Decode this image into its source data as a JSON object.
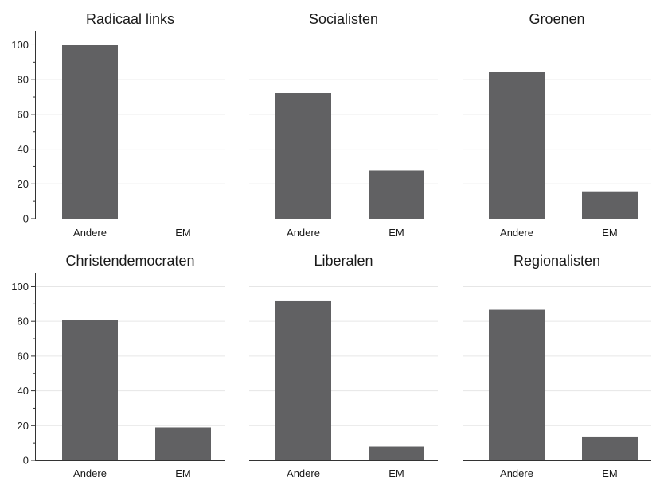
{
  "chart_data": [
    {
      "type": "bar",
      "title": "Radicaal links",
      "categories": [
        "Andere",
        "EM"
      ],
      "values": [
        100,
        0
      ],
      "ylim": [
        0,
        108
      ],
      "yticks": [
        0,
        20,
        40,
        60,
        80,
        100
      ],
      "grid": true
    },
    {
      "type": "bar",
      "title": "Socialisten",
      "categories": [
        "Andere",
        "EM"
      ],
      "values": [
        72.3,
        27.7
      ],
      "ylim": [
        0,
        108
      ],
      "yticks": [
        0,
        20,
        40,
        60,
        80,
        100
      ],
      "grid": true
    },
    {
      "type": "bar",
      "title": "Groenen",
      "categories": [
        "Andere",
        "EM"
      ],
      "values": [
        84.3,
        15.7
      ],
      "ylim": [
        0,
        108
      ],
      "yticks": [
        0,
        20,
        40,
        60,
        80,
        100
      ],
      "grid": true
    },
    {
      "type": "bar",
      "title": "Christendemocraten",
      "categories": [
        "Andere",
        "EM"
      ],
      "values": [
        81,
        19
      ],
      "ylim": [
        0,
        108
      ],
      "yticks": [
        0,
        20,
        40,
        60,
        80,
        100
      ],
      "grid": true
    },
    {
      "type": "bar",
      "title": "Liberalen",
      "categories": [
        "Andere",
        "EM"
      ],
      "values": [
        92,
        8
      ],
      "ylim": [
        0,
        108
      ],
      "yticks": [
        0,
        20,
        40,
        60,
        80,
        100
      ],
      "grid": true
    },
    {
      "type": "bar",
      "title": "Regionalisten",
      "categories": [
        "Andere",
        "EM"
      ],
      "values": [
        86.7,
        13.3
      ],
      "ylim": [
        0,
        108
      ],
      "yticks": [
        0,
        20,
        40,
        60,
        80,
        100
      ],
      "grid": true
    }
  ],
  "colors": {
    "bar": "#616163",
    "grid": "#e6e6e6",
    "axis": "#333333"
  }
}
